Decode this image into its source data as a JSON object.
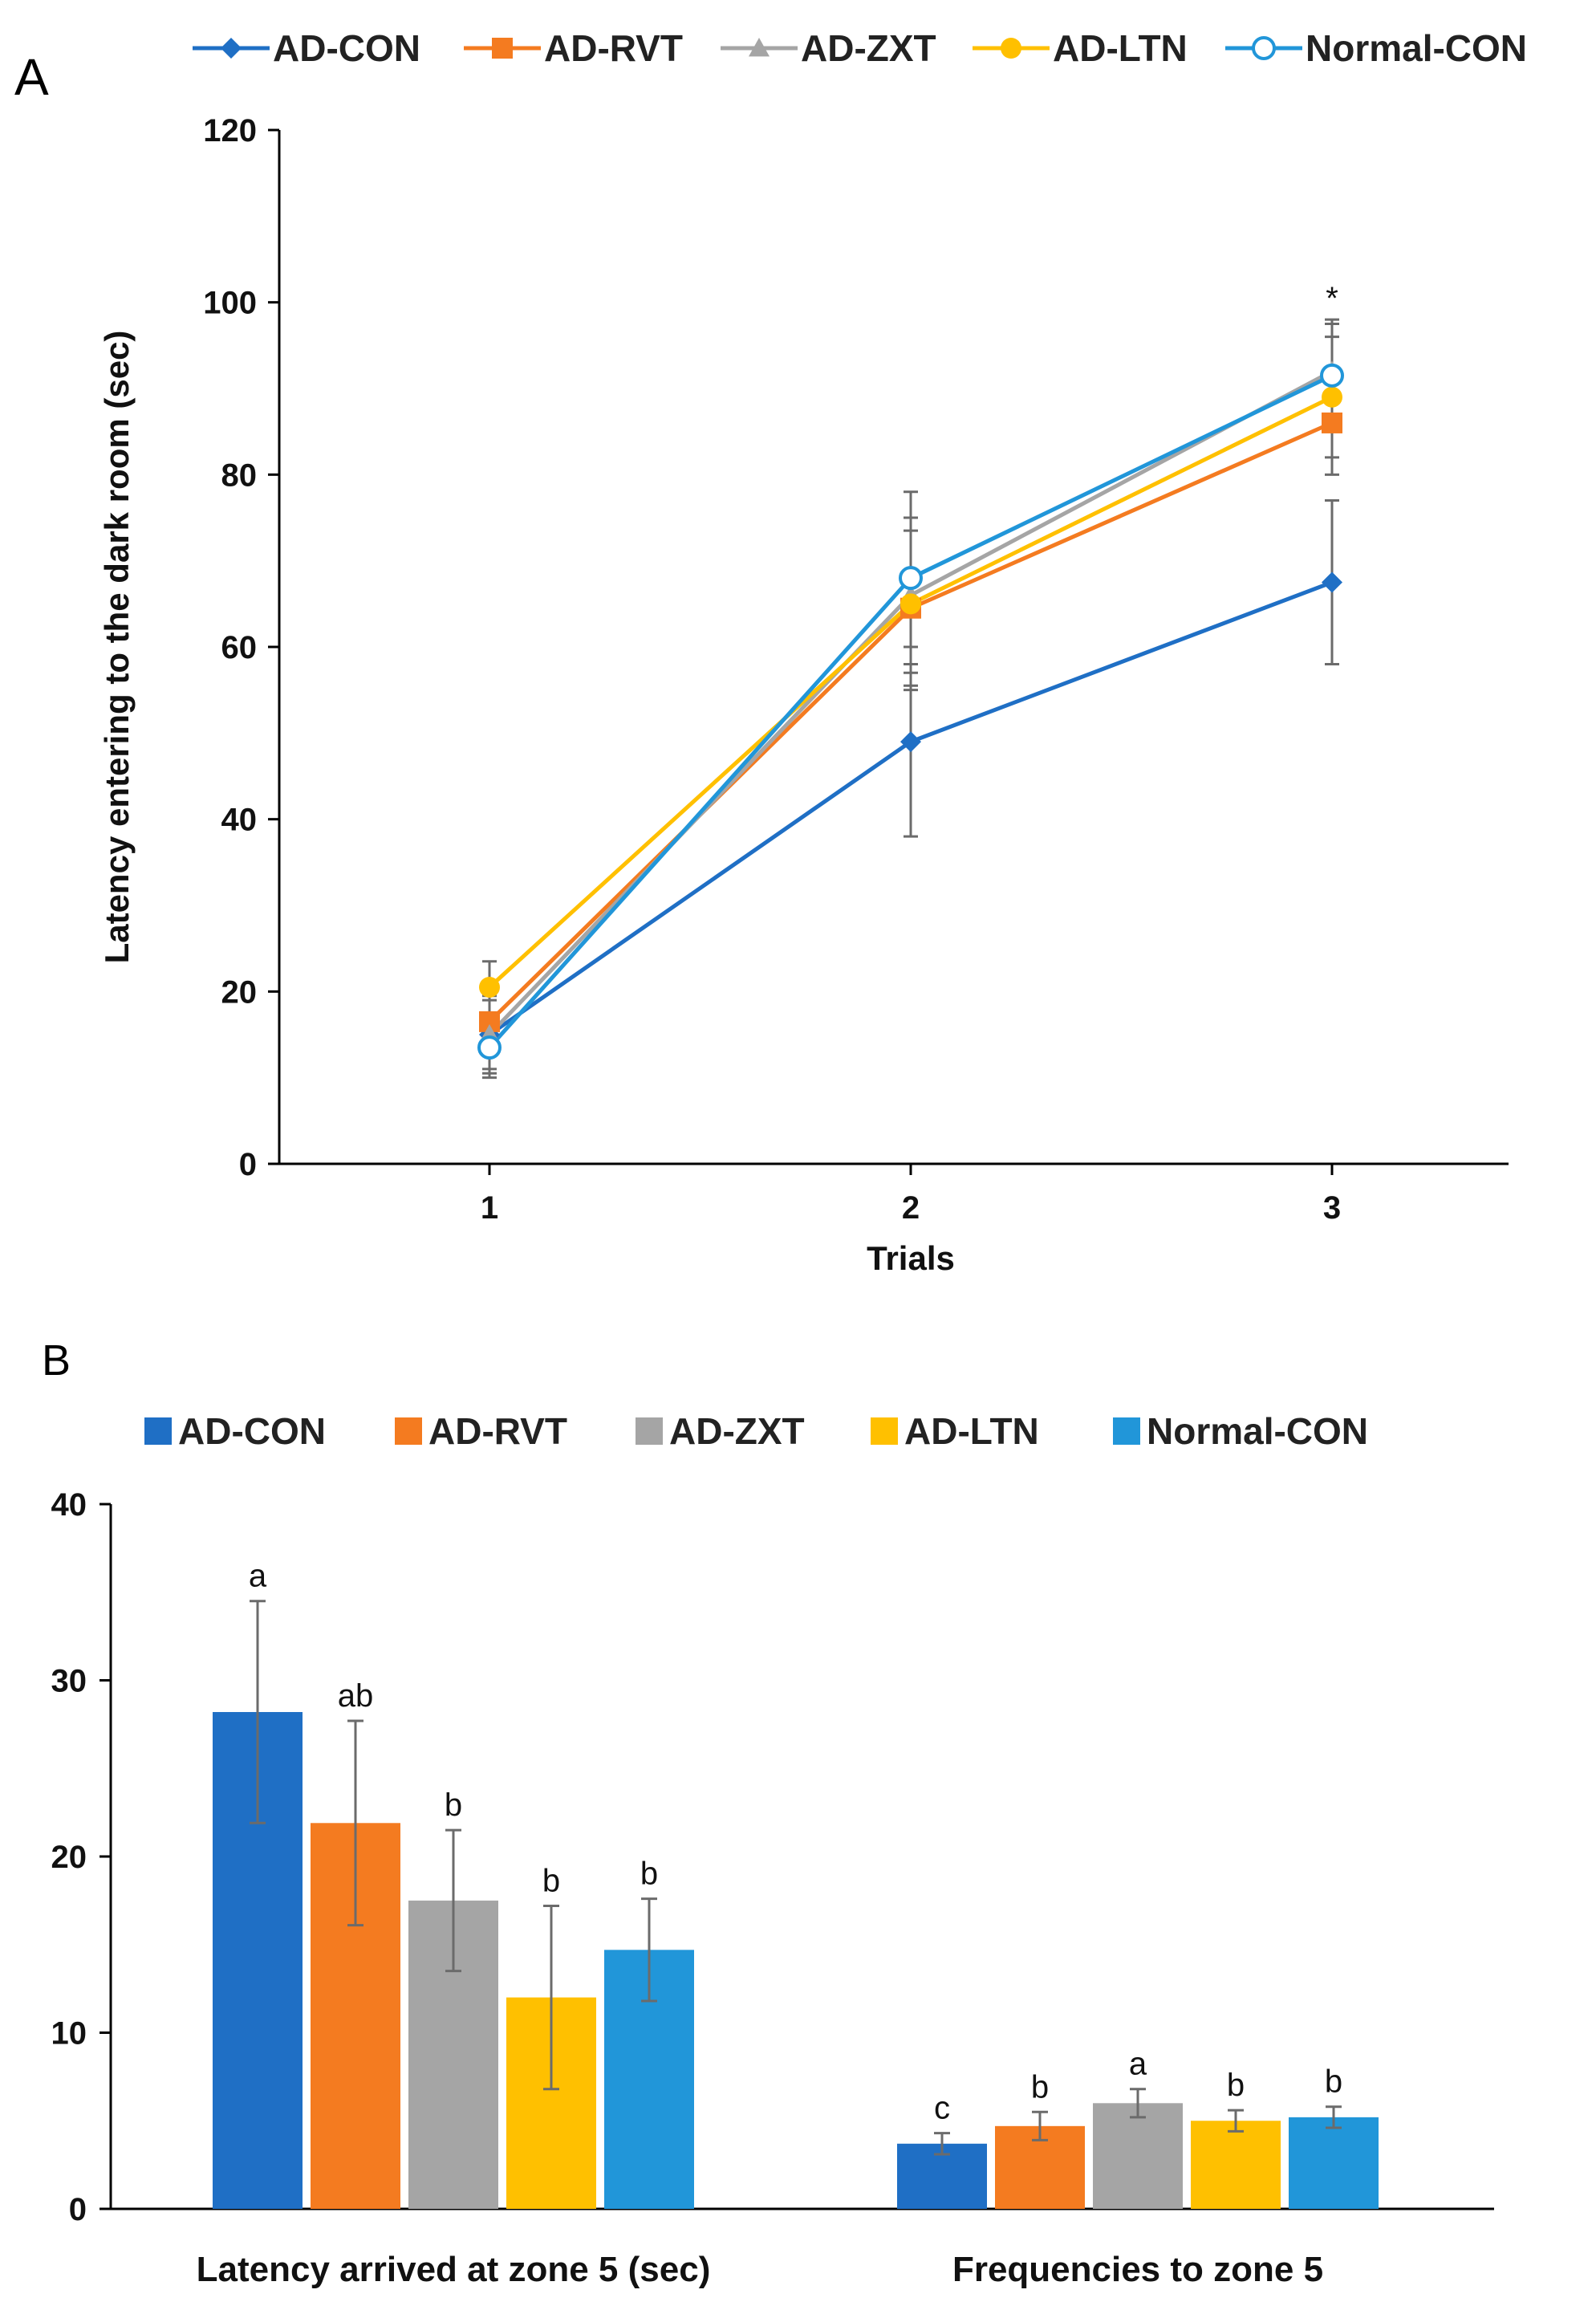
{
  "chart_data": [
    {
      "panel": "A",
      "type": "line",
      "title": "",
      "xlabel": "Trials",
      "ylabel": "Latency entering to the dark room (sec)",
      "categories": [
        "1",
        "2",
        "3"
      ],
      "ylim": [
        0,
        120
      ],
      "yticks": [
        "0",
        "20",
        "40",
        "60",
        "80",
        "100",
        "120"
      ],
      "legend_position": "top",
      "annotation": "*",
      "series": [
        {
          "name": "AD-CON",
          "color": "#1f6fc5",
          "marker": "diamond",
          "values": [
            15,
            49,
            67.5
          ],
          "errors": [
            5,
            11,
            9.5
          ]
        },
        {
          "name": "AD-RVT",
          "color": "#f47b20",
          "marker": "square",
          "values": [
            16.5,
            64.5,
            86
          ],
          "errors": [
            3,
            9,
            6
          ]
        },
        {
          "name": "AD-ZXT",
          "color": "#a5a5a5",
          "marker": "triangle",
          "values": [
            15,
            66,
            92
          ],
          "errors": [
            4,
            9,
            6
          ]
        },
        {
          "name": "AD-LTN",
          "color": "#ffc000",
          "marker": "circle",
          "values": [
            20.5,
            65,
            89
          ],
          "errors": [
            3,
            10,
            7
          ]
        },
        {
          "name": "Normal-CON",
          "color": "#2196d9",
          "marker": "open-circle",
          "values": [
            13.5,
            68,
            91.5
          ],
          "errors": [
            3,
            10,
            6
          ]
        }
      ]
    },
    {
      "panel": "B",
      "type": "bar",
      "title": "",
      "xlabel": "",
      "ylabel": "",
      "categories": [
        "Latency arrived at zone 5 (sec)",
        "Frequencies to zone 5"
      ],
      "ylim": [
        0,
        40
      ],
      "yticks": [
        "0",
        "10",
        "20",
        "30",
        "40"
      ],
      "legend_position": "top",
      "series": [
        {
          "name": "AD-CON",
          "color": "#1f6fc5",
          "values": [
            28.2,
            3.7
          ],
          "errors": [
            6.3,
            0.6
          ],
          "labels": [
            "a",
            "c"
          ]
        },
        {
          "name": "AD-RVT",
          "color": "#f47b20",
          "values": [
            21.9,
            4.7
          ],
          "errors": [
            5.8,
            0.8
          ],
          "labels": [
            "ab",
            "b"
          ]
        },
        {
          "name": "AD-ZXT",
          "color": "#a5a5a5",
          "values": [
            17.5,
            6.0
          ],
          "errors": [
            4.0,
            0.8
          ],
          "labels": [
            "b",
            "a"
          ]
        },
        {
          "name": "AD-LTN",
          "color": "#ffc000",
          "values": [
            12.0,
            5.0
          ],
          "errors": [
            5.2,
            0.6
          ],
          "labels": [
            "b",
            "b"
          ]
        },
        {
          "name": "Normal-CON",
          "color": "#2196d9",
          "values": [
            14.7,
            5.2
          ],
          "errors": [
            2.9,
            0.6
          ],
          "labels": [
            "b",
            "b"
          ]
        }
      ]
    }
  ]
}
